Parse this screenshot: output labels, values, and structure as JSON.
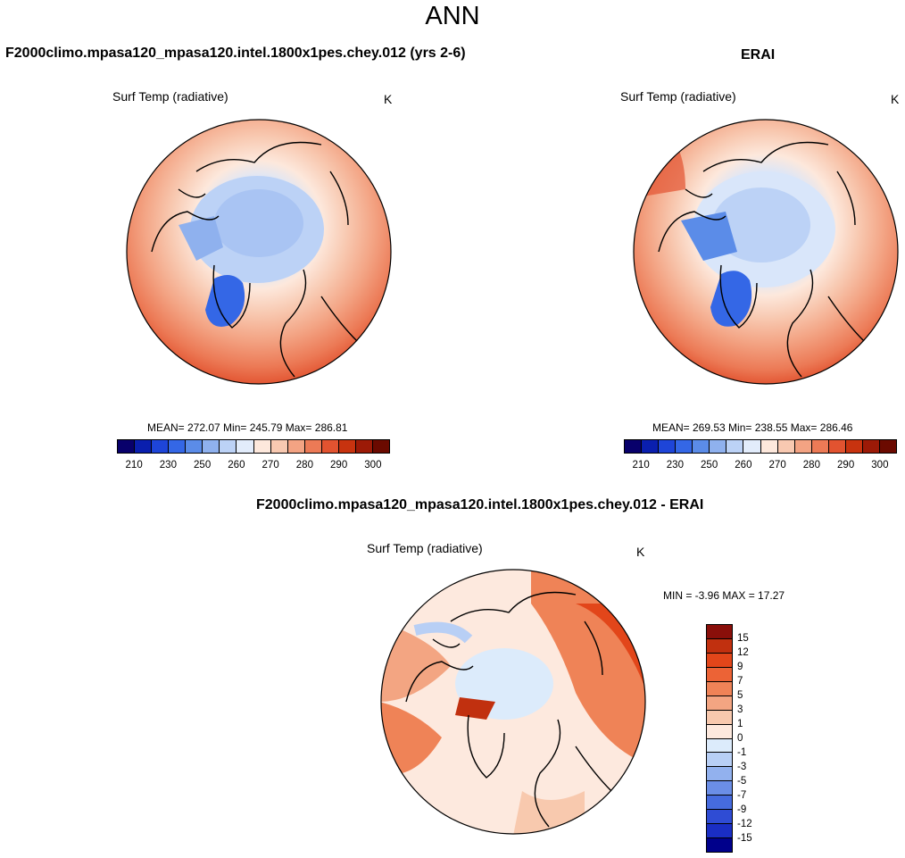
{
  "title": "ANN",
  "panels": [
    {
      "heading": "F2000climo.mpasa120_mpasa120.intel.1800x1pes.chey.012 (yrs 2-6)",
      "variable": "Surf Temp (radiative)",
      "units": "K",
      "stats": "MEAN= 272.07  Min= 245.79  Max= 286.81"
    },
    {
      "heading": "ERAI",
      "variable": "Surf Temp (radiative)",
      "units": "K",
      "stats": "MEAN= 269.53  Min= 238.55  Max= 286.46"
    },
    {
      "heading": "F2000climo.mpasa120_mpasa120.intel.1800x1pes.chey.012 - ERAI",
      "variable": "Surf Temp (radiative)",
      "units": "K",
      "stats": "MIN =  -3.96 MAX =  17.27"
    }
  ],
  "colorbar_abs": {
    "colors": [
      "#08006b",
      "#0a1fae",
      "#1e45d8",
      "#3467e6",
      "#5b8ce8",
      "#8fb1ee",
      "#bcd2f6",
      "#e2ecfb",
      "#fde8dc",
      "#f8c9b1",
      "#f3a383",
      "#ec7a56",
      "#e25330",
      "#c8330f",
      "#9c1a07",
      "#6b0a00"
    ],
    "tick_labels": [
      "210",
      "230",
      "250",
      "260",
      "270",
      "280",
      "290",
      "300"
    ]
  },
  "colorbar_diff": {
    "colors": [
      "#8a0f0a",
      "#c1300f",
      "#e2461a",
      "#ec6336",
      "#ef8357",
      "#f3a582",
      "#f8c9ae",
      "#fde9de",
      "#dcebfb",
      "#b8cff5",
      "#92b1ee",
      "#6b8ee6",
      "#466bde",
      "#2f4cd4",
      "#1a2ec4",
      "#00008b"
    ],
    "tick_labels": [
      "15",
      "12",
      "9",
      "7",
      "5",
      "3",
      "1",
      "0",
      "-1",
      "-3",
      "-5",
      "-7",
      "-9",
      "-12",
      "-15"
    ]
  }
}
